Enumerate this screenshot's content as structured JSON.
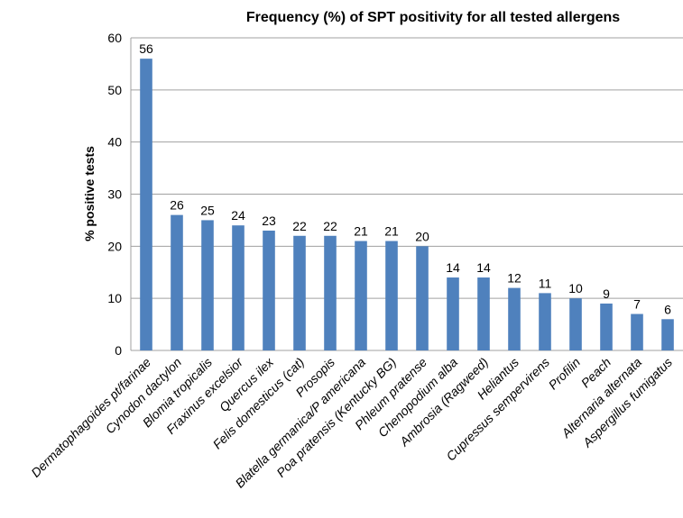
{
  "chart_data": {
    "type": "bar",
    "title": "Frequency (%) of SPT positivity for all tested allergens",
    "y_label": "% positive tests",
    "categories": [
      "Dermatophagoides pt/farinae",
      "Cynodon dactylon",
      "Blomia tropicalis",
      "Fraxinus excelsior",
      "Quercus ilex",
      "Felis domesticus (cat)",
      "Prosopis",
      "Blatella germanica/P americana",
      "Poa pratensis (Kentucky BG)",
      "Phleum pratense",
      "Chenopodium alba",
      "Ambrosia  (Ragweed)",
      "Heliantus",
      "Cupressus sempervirens",
      "Profilin",
      "Peach",
      "Alternaria alternata",
      "Aspergillus fumigatus"
    ],
    "values": [
      56,
      26,
      25,
      24,
      23,
      22,
      22,
      21,
      21,
      20,
      14,
      14,
      12,
      11,
      10,
      9,
      7,
      6
    ],
    "color": "#4f81bd",
    "ylim": [
      0,
      60
    ],
    "yticks": [
      0,
      10,
      20,
      30,
      40,
      50,
      60
    ],
    "grid": true
  }
}
